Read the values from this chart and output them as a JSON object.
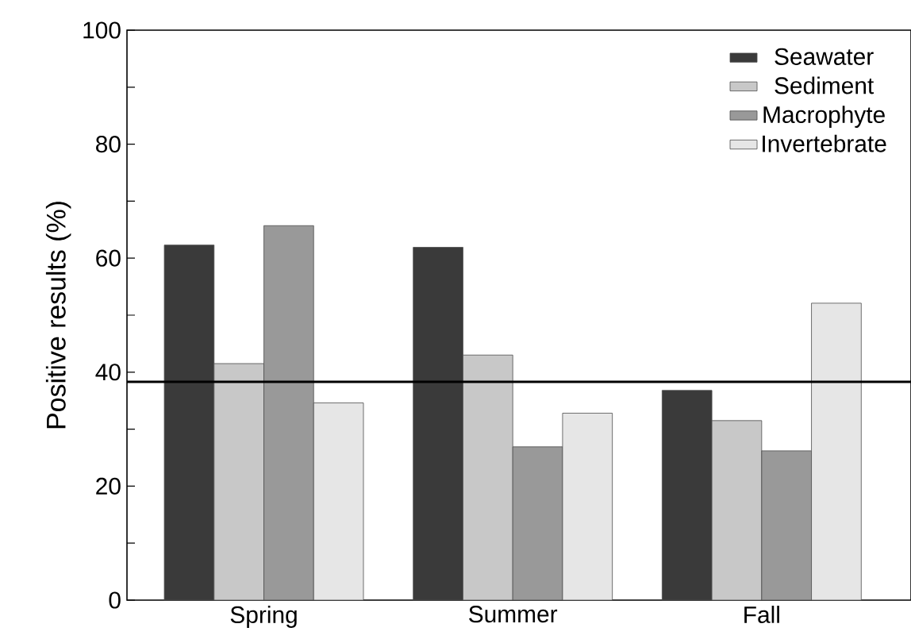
{
  "chart_data": {
    "type": "bar",
    "ylabel": "Positive results (%)",
    "categories": [
      "Spring",
      "Summer",
      "Fall"
    ],
    "series": [
      {
        "name": "Seawater",
        "color": "#3a3a3a",
        "values": [
          62.3,
          61.9,
          36.8
        ]
      },
      {
        "name": "Sediment",
        "color": "#c8c8c8",
        "values": [
          41.5,
          43.0,
          31.5
        ]
      },
      {
        "name": "Macrophyte",
        "color": "#999999",
        "values": [
          65.7,
          26.9,
          26.2
        ]
      },
      {
        "name": "Invertebrate",
        "color": "#e6e6e6",
        "values": [
          34.6,
          32.8,
          52.1
        ]
      }
    ],
    "ylim": [
      0,
      100
    ],
    "yticks": [
      0,
      {
        "value": 10,
        "label": null
      },
      20,
      {
        "value": 30,
        "label": null
      },
      40,
      {
        "value": 50,
        "label": null
      },
      60,
      {
        "value": 70,
        "label": null
      },
      80,
      {
        "value": 90,
        "label": null
      },
      100
    ],
    "ref_lines": [
      {
        "axis": "y",
        "value": 38.3,
        "color": "#000000"
      }
    ],
    "legend": "top right",
    "grid": false
  }
}
